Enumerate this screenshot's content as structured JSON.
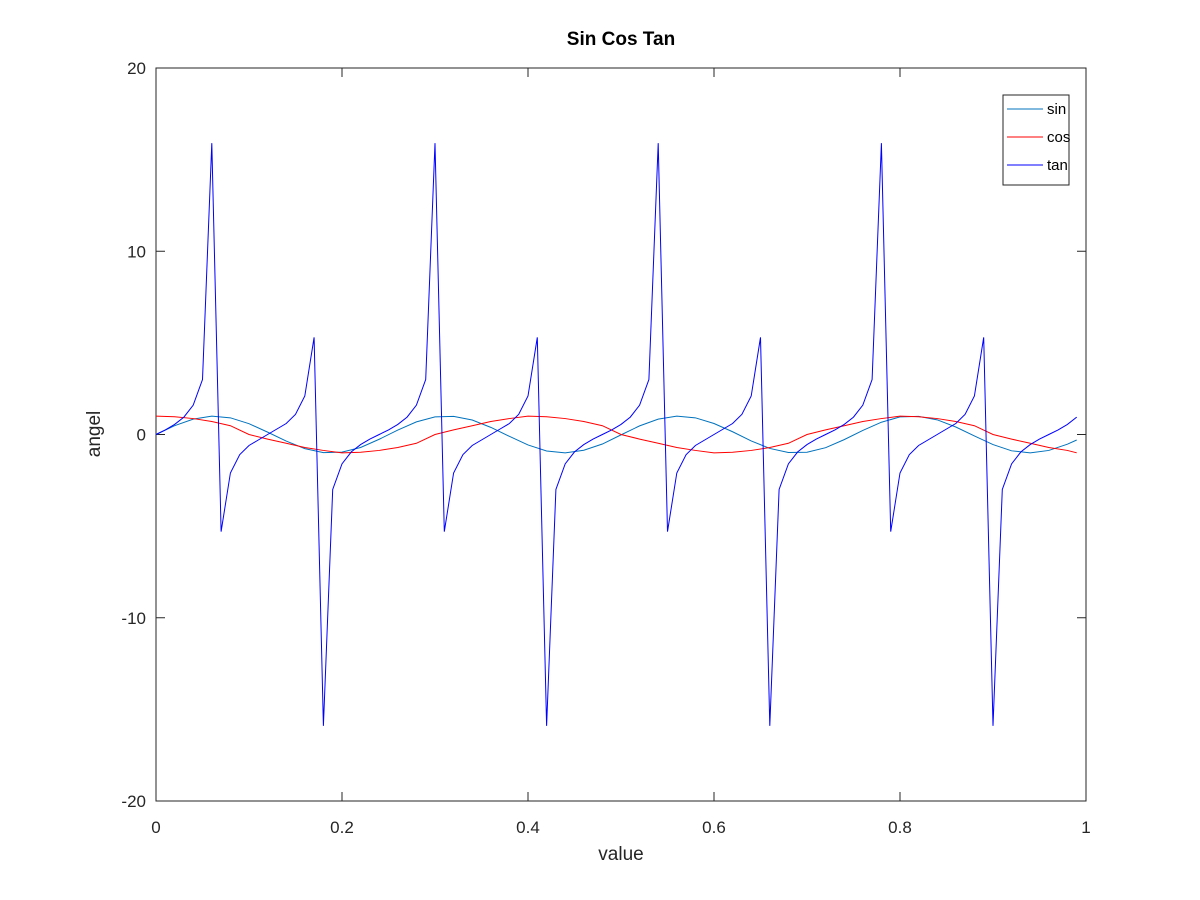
{
  "chart_data": {
    "type": "line",
    "title": "Sin Cos Tan",
    "xlabel": "value",
    "ylabel": "angel",
    "xlim": [
      0,
      1
    ],
    "ylim": [
      -20,
      20
    ],
    "xticks": [
      0,
      0.2,
      0.4,
      0.6,
      0.8,
      1
    ],
    "xtick_labels": [
      "0",
      "0.2",
      "0.4",
      "0.6",
      "0.8",
      "1"
    ],
    "yticks": [
      -20,
      -10,
      0,
      10,
      20
    ],
    "ytick_labels": [
      "-20",
      "-10",
      "0",
      "10",
      "20"
    ],
    "grid": false,
    "legend_position": "top-right",
    "series": [
      {
        "name": "sin",
        "color": "#0072bd",
        "x": [
          0,
          0.02,
          0.04,
          0.06,
          0.08,
          0.1,
          0.12,
          0.14,
          0.16,
          0.18,
          0.2,
          0.22,
          0.24,
          0.26,
          0.28,
          0.3,
          0.32,
          0.34,
          0.36,
          0.38,
          0.4,
          0.42,
          0.44,
          0.46,
          0.48,
          0.5,
          0.52,
          0.54,
          0.56,
          0.58,
          0.6,
          0.62,
          0.64,
          0.66,
          0.68,
          0.7,
          0.72,
          0.74,
          0.76,
          0.78,
          0.8,
          0.82,
          0.84,
          0.86,
          0.88,
          0.9,
          0.92,
          0.94,
          0.96,
          0.98,
          0.99
        ],
        "y": [
          0,
          0.48,
          0.84,
          1.0,
          0.91,
          0.59,
          0.13,
          -0.36,
          -0.77,
          -0.99,
          -0.96,
          -0.71,
          -0.26,
          0.24,
          0.69,
          0.96,
          0.99,
          0.79,
          0.39,
          -0.1,
          -0.57,
          -0.9,
          -1.0,
          -0.86,
          -0.52,
          -0.02,
          0.47,
          0.84,
          1.0,
          0.91,
          0.6,
          0.15,
          -0.35,
          -0.76,
          -0.98,
          -0.97,
          -0.72,
          -0.28,
          0.22,
          0.67,
          0.96,
          0.99,
          0.8,
          0.41,
          -0.08,
          -0.55,
          -0.89,
          -1.0,
          -0.87,
          -0.53,
          -0.3
        ]
      },
      {
        "name": "cos",
        "color": "#ff0000",
        "x": [
          0,
          0.02,
          0.04,
          0.06,
          0.08,
          0.1,
          0.12,
          0.14,
          0.16,
          0.18,
          0.2,
          0.22,
          0.24,
          0.26,
          0.28,
          0.3,
          0.32,
          0.34,
          0.36,
          0.38,
          0.4,
          0.42,
          0.44,
          0.46,
          0.48,
          0.5,
          0.52,
          0.54,
          0.56,
          0.58,
          0.6,
          0.62,
          0.64,
          0.66,
          0.68,
          0.7,
          0.72,
          0.74,
          0.76,
          0.78,
          0.8,
          0.82,
          0.84,
          0.86,
          0.88,
          0.9,
          0.92,
          0.94,
          0.96,
          0.98,
          0.99
        ],
        "y": [
          1.0,
          0.97,
          0.87,
          0.71,
          0.48,
          0.0,
          -0.25,
          -0.48,
          -0.71,
          -0.87,
          -1.0,
          -0.97,
          -0.87,
          -0.71,
          -0.48,
          0.0,
          0.25,
          0.48,
          0.71,
          0.87,
          1.0,
          0.97,
          0.87,
          0.71,
          0.48,
          0.0,
          -0.25,
          -0.48,
          -0.71,
          -0.87,
          -1.0,
          -0.97,
          -0.87,
          -0.71,
          -0.48,
          0.0,
          0.25,
          0.48,
          0.71,
          0.87,
          1.0,
          0.97,
          0.87,
          0.71,
          0.48,
          0.0,
          -0.25,
          -0.48,
          -0.71,
          -0.87,
          -1.0
        ]
      },
      {
        "name": "tan",
        "color": "#0000ff",
        "x": [
          0,
          0.01,
          0.02,
          0.03,
          0.04,
          0.05,
          0.06,
          0.07,
          0.08,
          0.09,
          0.1,
          0.11,
          0.12,
          0.13,
          0.14,
          0.15,
          0.16,
          0.17,
          0.18,
          0.19,
          0.2,
          0.21,
          0.22,
          0.23,
          0.24,
          0.25,
          0.26,
          0.27,
          0.28,
          0.29,
          0.3,
          0.31,
          0.32,
          0.33,
          0.34,
          0.35,
          0.36,
          0.37,
          0.38,
          0.39,
          0.4,
          0.41,
          0.42,
          0.43,
          0.44,
          0.45,
          0.46,
          0.47,
          0.48,
          0.49,
          0.5,
          0.51,
          0.52,
          0.53,
          0.54,
          0.55,
          0.56,
          0.57,
          0.58,
          0.59,
          0.6,
          0.61,
          0.62,
          0.63,
          0.64,
          0.65,
          0.66,
          0.67,
          0.68,
          0.69,
          0.7,
          0.71,
          0.72,
          0.73,
          0.74,
          0.75,
          0.76,
          0.77,
          0.78,
          0.79,
          0.8,
          0.81,
          0.82,
          0.83,
          0.84,
          0.85,
          0.86,
          0.87,
          0.88,
          0.89,
          0.9,
          0.91,
          0.92,
          0.93,
          0.94,
          0.95,
          0.96,
          0.97,
          0.98,
          0.99
        ],
        "y": [
          0,
          0.25,
          0.55,
          0.95,
          1.6,
          3.0,
          15.9,
          -5.3,
          -2.1,
          -1.1,
          -0.6,
          -0.3,
          0.0,
          0.3,
          0.6,
          1.1,
          2.1,
          5.3,
          -15.9,
          -3.0,
          -1.6,
          -0.95,
          -0.55,
          -0.25,
          0.0,
          0.25,
          0.55,
          0.95,
          1.6,
          3.0,
          15.9,
          -5.3,
          -2.1,
          -1.1,
          -0.6,
          -0.3,
          0.0,
          0.3,
          0.6,
          1.1,
          2.1,
          5.3,
          -15.9,
          -3.0,
          -1.6,
          -0.95,
          -0.55,
          -0.25,
          0.0,
          0.25,
          0.55,
          0.95,
          1.6,
          3.0,
          15.9,
          -5.3,
          -2.1,
          -1.1,
          -0.6,
          -0.3,
          0.0,
          0.3,
          0.6,
          1.1,
          2.1,
          5.3,
          -15.9,
          -3.0,
          -1.6,
          -0.95,
          -0.55,
          -0.25,
          0.0,
          0.25,
          0.55,
          0.95,
          1.6,
          3.0,
          15.9,
          -5.3,
          -2.1,
          -1.1,
          -0.6,
          -0.3,
          0.0,
          0.3,
          0.6,
          1.1,
          2.1,
          5.3,
          -15.9,
          -3.0,
          -1.6,
          -0.95,
          -0.55,
          -0.25,
          0.0,
          0.25,
          0.55,
          0.95
        ]
      }
    ]
  }
}
